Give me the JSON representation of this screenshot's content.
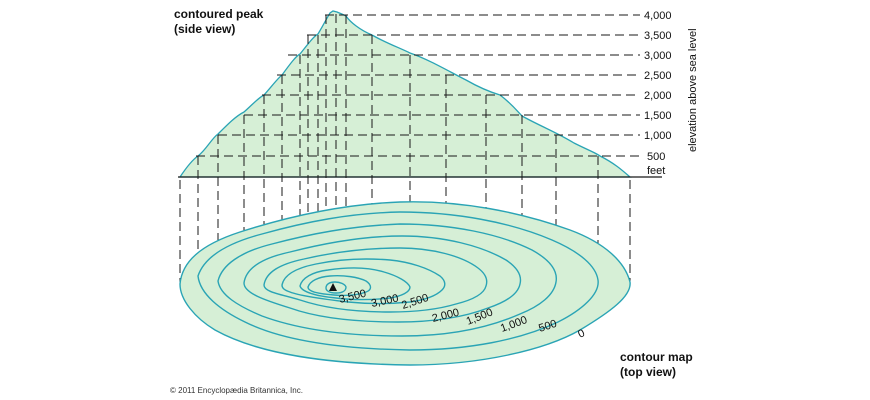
{
  "side_view": {
    "title_line1": "contoured peak",
    "title_line2": "(side view)"
  },
  "top_view": {
    "title_line1": "contour map",
    "title_line2": "(top view)"
  },
  "elevation_axis": {
    "label": "elevation above sea level",
    "unit": "feet",
    "ticks": [
      "4,000",
      "3,500",
      "3,000",
      "2,500",
      "2,000",
      "1,500",
      "1,000",
      "500"
    ]
  },
  "contour_labels": [
    "3,500",
    "3,000",
    "2,500",
    "2,000",
    "1,500",
    "1,000",
    "500",
    "0"
  ],
  "copyright": "© 2011 Encyclopædia Britannica, Inc.",
  "colors": {
    "fill": "#d6efd6",
    "contour": "#2aa4b5",
    "outline": "#1a1a1a"
  },
  "icons": {
    "summit": "triangle-marker"
  }
}
